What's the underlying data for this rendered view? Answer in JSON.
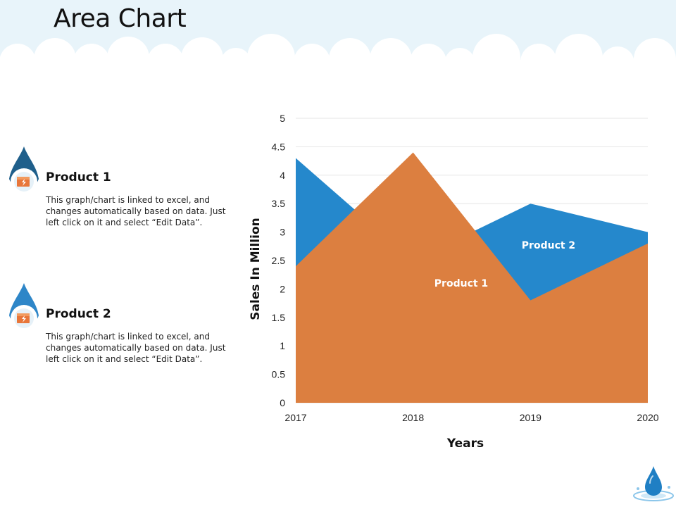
{
  "page": {
    "title": "Area Chart"
  },
  "legend": [
    {
      "title": "Product 1",
      "description": "This graph/chart is linked to excel, and changes automatically based on data. Just left click on it and select “Edit Data”.",
      "icon": "box-icon",
      "drop_color": "#1f5f8b",
      "ring_color": "#2f6f9b"
    },
    {
      "title": "Product 2",
      "description": "This graph/chart is linked to excel, and changes automatically based on data. Just left click on it and select “Edit Data”.",
      "icon": "box-icon",
      "drop_color": "#2e86c8",
      "ring_color": "#3a93d1"
    }
  ],
  "colors": {
    "product1": "#dc7f40",
    "product2": "#2588cc",
    "cloud_band": "#e8f4fa",
    "icon_fill": "#e8763a",
    "corner_drop": "#1f7fc4"
  },
  "chart_data": {
    "type": "area",
    "x": [
      "2017",
      "2018",
      "2019",
      "2020"
    ],
    "series": [
      {
        "name": "Product 2",
        "values": [
          4.3,
          2.5,
          3.5,
          3.0
        ]
      },
      {
        "name": "Product 1",
        "values": [
          2.4,
          4.4,
          1.8,
          2.8
        ]
      }
    ],
    "series_labels": [
      "Product 1",
      "Product 2"
    ],
    "xlabel": "Years",
    "ylabel": "Sales In Million",
    "ylim": [
      0,
      5
    ],
    "yticks": [
      "0",
      "0.5",
      "1",
      "1.5",
      "2",
      "2.5",
      "3",
      "3.5",
      "4",
      "4.5",
      "5"
    ],
    "grid": true
  }
}
